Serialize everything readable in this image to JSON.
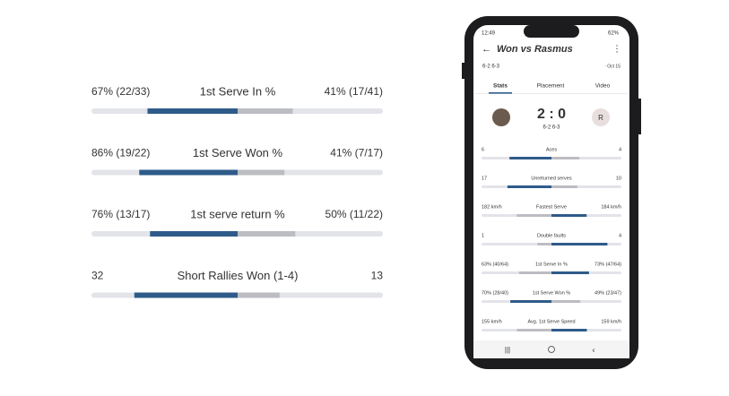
{
  "comparison": {
    "rows": [
      {
        "name": "1st Serve In %",
        "left": {
          "value": 67,
          "label": "67% (22/33)"
        },
        "right": {
          "value": 41,
          "label": "41% (17/41)"
        }
      },
      {
        "name": "1st Serve Won %",
        "left": {
          "value": 86,
          "label": "86% (19/22)"
        },
        "right": {
          "value": 41,
          "label": "41% (7/17)"
        }
      },
      {
        "name": "1st serve return %",
        "left": {
          "value": 76,
          "label": "76% (13/17)"
        },
        "right": {
          "value": 50,
          "label": "50% (11/22)"
        }
      },
      {
        "name": "Short Rallies Won (1-4)",
        "left": {
          "value": 32,
          "label": "32"
        },
        "right": {
          "value": 13,
          "label": "13"
        }
      }
    ]
  },
  "phone": {
    "status": {
      "time": "12:49",
      "battery": "62%"
    },
    "title": "Won vs Rasmus",
    "sets": "6-2  6-3",
    "date": "· Oct 15",
    "tabs": [
      "Stats",
      "Placement",
      "Video"
    ],
    "score": "2 : 0",
    "score_sets": "6-2  6-3",
    "opponent_initial": "R",
    "stats": [
      {
        "name": "Aces",
        "left": {
          "value": 6,
          "label": "6"
        },
        "right": {
          "value": 4,
          "label": "4"
        }
      },
      {
        "name": "Unreturned serves",
        "left": {
          "value": 17,
          "label": "17"
        },
        "right": {
          "value": 10,
          "label": "10"
        }
      },
      {
        "name": "Fastest Serve",
        "left": {
          "value": 182,
          "label": "182 km/h"
        },
        "right": {
          "value": 184,
          "label": "184 km/h"
        }
      },
      {
        "name": "Double faults",
        "left": {
          "value": 1,
          "label": "1"
        },
        "right": {
          "value": 4,
          "label": "4"
        }
      },
      {
        "name": "1st Serve In %",
        "left": {
          "value": 63,
          "label": "63% (40/64)"
        },
        "right": {
          "value": 73,
          "label": "73% (47/64)"
        }
      },
      {
        "name": "1st Serve Won %",
        "left": {
          "value": 70,
          "label": "70% (28/40)"
        },
        "right": {
          "value": 49,
          "label": "49% (23/47)"
        }
      },
      {
        "name": "Avg. 1st Serve Speed",
        "left": {
          "value": 155,
          "label": "155 km/h"
        },
        "right": {
          "value": 159,
          "label": "159 km/h"
        }
      }
    ]
  }
}
